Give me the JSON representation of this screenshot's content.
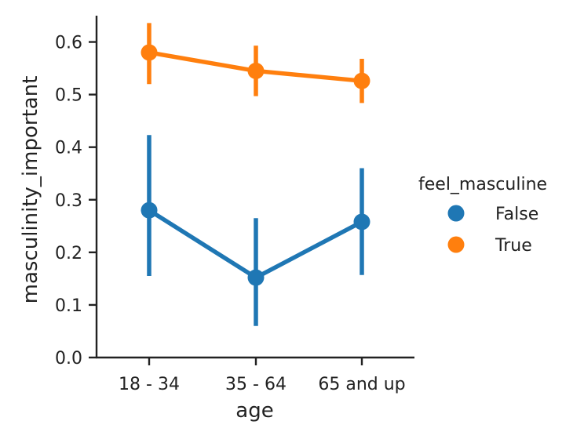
{
  "chart_data": {
    "type": "line",
    "title": "",
    "xlabel": "age",
    "ylabel": "masculinity_important",
    "categories": [
      "18 - 34",
      "35 - 64",
      "65 and up"
    ],
    "ylim": [
      0.0,
      0.65
    ],
    "yticks": [
      "0.0",
      "0.1",
      "0.2",
      "0.3",
      "0.4",
      "0.5",
      "0.6"
    ],
    "grid": false,
    "legend": {
      "title": "feel_masculine",
      "placement": "right"
    },
    "series": [
      {
        "name": "False",
        "color": "#1f77b4",
        "values": [
          0.28,
          0.152,
          0.258
        ],
        "ci_low": [
          0.155,
          0.06,
          0.157
        ],
        "ci_high": [
          0.423,
          0.265,
          0.36
        ]
      },
      {
        "name": "True",
        "color": "#ff7f0e",
        "values": [
          0.58,
          0.545,
          0.526
        ],
        "ci_low": [
          0.52,
          0.497,
          0.484
        ],
        "ci_high": [
          0.636,
          0.593,
          0.568
        ]
      }
    ]
  }
}
